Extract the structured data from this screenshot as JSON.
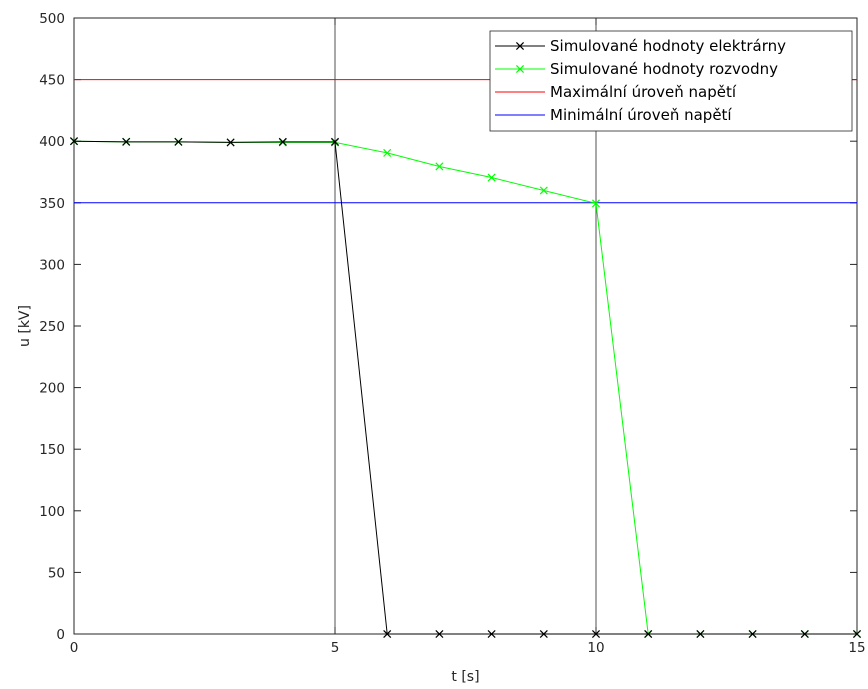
{
  "chart_data": {
    "type": "line",
    "xlabel": "t [s]",
    "ylabel": "u [kV]",
    "xlim": [
      0,
      15
    ],
    "ylim": [
      0,
      500
    ],
    "xticks": [
      0,
      5,
      10,
      15
    ],
    "yticks": [
      0,
      50,
      100,
      150,
      200,
      250,
      300,
      350,
      400,
      450,
      500
    ],
    "vertical_lines": [
      5,
      10
    ],
    "legend_position": "top-right",
    "series": [
      {
        "name": "Simulované hodnoty elektrárny",
        "color": "#000000",
        "marker": "x",
        "x": [
          0,
          1,
          2,
          3,
          4,
          5,
          6,
          7,
          8,
          9,
          10,
          11,
          12,
          13,
          14,
          15
        ],
        "y": [
          400,
          399.5,
          399.5,
          399,
          399.5,
          399.5,
          0,
          0,
          0,
          0,
          0,
          0,
          0,
          0,
          0,
          0
        ]
      },
      {
        "name": "Simulované hodnoty rozvodny",
        "color": "#00ff00",
        "marker": "x",
        "x": [
          0,
          1,
          2,
          3,
          4,
          5,
          6,
          7,
          8,
          9,
          10,
          11,
          12,
          13,
          14,
          15
        ],
        "y": [
          400,
          399.5,
          399.5,
          399,
          399,
          399,
          390.5,
          379.5,
          370.5,
          360,
          349.5,
          0,
          0,
          0,
          0,
          0
        ]
      },
      {
        "name": "Maximální úroveň napětí",
        "color": "#ff0000",
        "marker": "none",
        "x": [
          0,
          15
        ],
        "y": [
          450,
          450
        ]
      },
      {
        "name": "Minimální úroveň napětí",
        "color": "#0000ff",
        "marker": "none",
        "x": [
          0,
          15
        ],
        "y": [
          350,
          350
        ]
      }
    ]
  }
}
